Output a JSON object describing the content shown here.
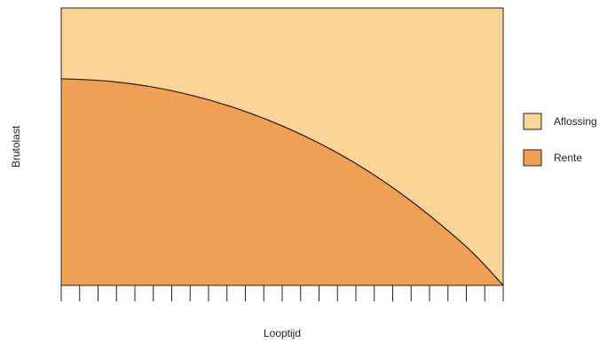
{
  "chart_data": {
    "type": "area",
    "title": "",
    "xlabel": "Looptijd",
    "ylabel": "Brutolast",
    "xlim": [
      0,
      1
    ],
    "ylim": [
      0,
      1
    ],
    "x_ticks": 24,
    "x_tick_labels": [],
    "y_tick_labels": [],
    "grid": false,
    "legend_position": "right",
    "stacked": true,
    "series": [
      {
        "name": "Aflossing",
        "color": "#f9d496",
        "total_level": 1.0
      },
      {
        "name": "Rente",
        "color": "#f0a055",
        "x": [
          0,
          0.1,
          0.2,
          0.3,
          0.4,
          0.5,
          0.6,
          0.7,
          0.8,
          0.9,
          0.95,
          1.0
        ],
        "y": [
          0.745,
          0.737,
          0.717,
          0.683,
          0.636,
          0.575,
          0.499,
          0.406,
          0.294,
          0.163,
          0.087,
          0.0
        ]
      }
    ]
  }
}
